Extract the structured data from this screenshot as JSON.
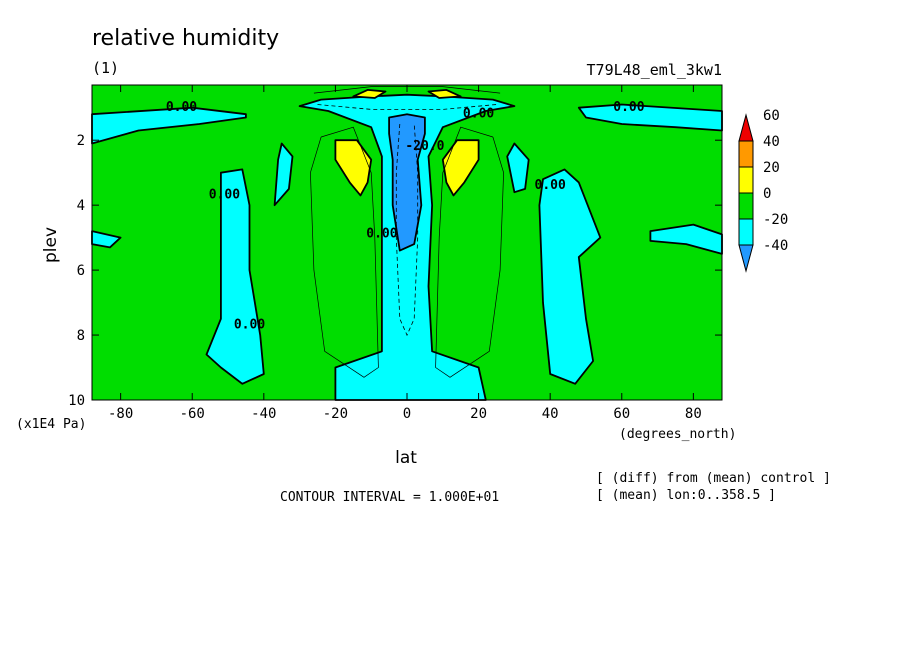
{
  "chart_data": {
    "type": "heatmap",
    "title": "relative humidity",
    "subtitle_left": "(1)",
    "subtitle_right": "T79L48_eml_3kw1",
    "xlabel": "lat",
    "ylabel": "plev",
    "x_units": "(degrees_north)",
    "y_units": "(x1E4 Pa)",
    "xlim": [
      -88,
      88
    ],
    "ylim": [
      0.3,
      10
    ],
    "y_inverted": true,
    "x_ticks": [
      -80,
      -60,
      -40,
      -20,
      0,
      20,
      40,
      60,
      80
    ],
    "y_ticks": [
      2,
      4,
      6,
      8,
      10
    ],
    "contour_interval_text": "CONTOUR INTERVAL = 1.000E+01",
    "notes": [
      "[ (diff) from (mean) control ]",
      "[ (mean) lon:0..358.5 ]"
    ],
    "colorbar": {
      "levels": [
        60,
        40,
        20,
        0,
        -20,
        -40
      ],
      "colors": [
        "#ee0000",
        "#ff9900",
        "#ffff00",
        "#00dd00",
        "#00ffff",
        "#2299ff"
      ]
    },
    "contour_labels": [
      {
        "text": "0.00",
        "lat": -63,
        "p": 1.1
      },
      {
        "text": "0.00",
        "lat": 62,
        "p": 1.1
      },
      {
        "text": "0.00",
        "lat": 20,
        "p": 1.3
      },
      {
        "text": "0.00",
        "lat": -51,
        "p": 3.8
      },
      {
        "text": "0.00",
        "lat": -44,
        "p": 7.8
      },
      {
        "text": "0.00",
        "lat": 40,
        "p": 3.5
      },
      {
        "text": "0.00",
        "lat": -7,
        "p": 5.0
      },
      {
        "text": "-20.0",
        "lat": 5,
        "p": 2.3
      }
    ],
    "regions": {
      "cyan": [
        [
          [
            -88,
            1.2
          ],
          [
            -60,
            1.0
          ],
          [
            -45,
            1.2
          ],
          [
            -45,
            1.3
          ],
          [
            -58,
            1.5
          ],
          [
            -75,
            1.7
          ],
          [
            -88,
            2.1
          ]
        ],
        [
          [
            88,
            1.1
          ],
          [
            60,
            0.9
          ],
          [
            48,
            1.0
          ],
          [
            50,
            1.3
          ],
          [
            60,
            1.5
          ],
          [
            75,
            1.6
          ],
          [
            88,
            1.7
          ]
        ],
        [
          [
            -52,
            3.0
          ],
          [
            -46,
            2.9
          ],
          [
            -44,
            4.0
          ],
          [
            -44,
            6.0
          ],
          [
            -41,
            8.0
          ],
          [
            -40,
            9.2
          ],
          [
            -46,
            9.5
          ],
          [
            -52,
            9.0
          ],
          [
            -56,
            8.6
          ],
          [
            -52,
            7.5
          ],
          [
            -52,
            5.0
          ]
        ],
        [
          [
            -35,
            2.1
          ],
          [
            -32,
            2.5
          ],
          [
            -33,
            3.5
          ],
          [
            -37,
            4.0
          ],
          [
            -36,
            2.6
          ]
        ],
        [
          [
            -88,
            4.8
          ],
          [
            -80,
            5.0
          ],
          [
            -83,
            5.3
          ],
          [
            -88,
            5.2
          ]
        ],
        [
          [
            -24,
            0.75
          ],
          [
            -10,
            0.65
          ],
          [
            0,
            0.6
          ],
          [
            10,
            0.65
          ],
          [
            24,
            0.75
          ],
          [
            30,
            0.95
          ],
          [
            22,
            1.1
          ],
          [
            10,
            1.6
          ],
          [
            6,
            2.5
          ],
          [
            7,
            4.0
          ],
          [
            6,
            6.5
          ],
          [
            7,
            8.5
          ],
          [
            20,
            9.0
          ],
          [
            22,
            10.0
          ],
          [
            -20,
            10.0
          ],
          [
            -20,
            9.0
          ],
          [
            -7,
            8.5
          ],
          [
            -7,
            6.5
          ],
          [
            -7,
            4.0
          ],
          [
            -7,
            2.5
          ],
          [
            -10,
            1.6
          ],
          [
            -22,
            1.1
          ],
          [
            -30,
            0.95
          ]
        ],
        [
          [
            30,
            2.1
          ],
          [
            34,
            2.6
          ],
          [
            33,
            3.5
          ],
          [
            30,
            3.6
          ],
          [
            28,
            2.5
          ]
        ],
        [
          [
            38,
            3.2
          ],
          [
            44,
            2.9
          ],
          [
            48,
            3.3
          ],
          [
            54,
            5.0
          ],
          [
            48,
            5.6
          ],
          [
            50,
            7.5
          ],
          [
            52,
            8.8
          ],
          [
            47,
            9.5
          ],
          [
            40,
            9.2
          ],
          [
            38,
            7.0
          ],
          [
            37,
            4.0
          ]
        ],
        [
          [
            68,
            4.8
          ],
          [
            80,
            4.6
          ],
          [
            88,
            4.9
          ],
          [
            88,
            5.5
          ],
          [
            78,
            5.2
          ],
          [
            68,
            5.1
          ]
        ]
      ],
      "blue": [
        [
          [
            -5,
            1.3
          ],
          [
            0,
            1.2
          ],
          [
            5,
            1.3
          ],
          [
            5,
            1.8
          ],
          [
            3,
            2.6
          ],
          [
            4,
            4.0
          ],
          [
            2,
            5.2
          ],
          [
            -2,
            5.4
          ],
          [
            -4,
            4.0
          ],
          [
            -4,
            2.6
          ],
          [
            -5,
            1.8
          ]
        ]
      ],
      "yellow": [
        [
          [
            -20,
            2.0
          ],
          [
            -14,
            2.0
          ],
          [
            -10,
            2.6
          ],
          [
            -11,
            3.3
          ],
          [
            -13,
            3.7
          ],
          [
            -16,
            3.3
          ],
          [
            -20,
            2.6
          ]
        ],
        [
          [
            10,
            2.6
          ],
          [
            14,
            2.0
          ],
          [
            20,
            2.0
          ],
          [
            20,
            2.6
          ],
          [
            16,
            3.3
          ],
          [
            13,
            3.7
          ],
          [
            11,
            3.3
          ]
        ],
        [
          [
            -11,
            0.45
          ],
          [
            -6,
            0.5
          ],
          [
            -9,
            0.7
          ],
          [
            -15,
            0.65
          ]
        ],
        [
          [
            6,
            0.5
          ],
          [
            11,
            0.45
          ],
          [
            15,
            0.65
          ],
          [
            9,
            0.7
          ]
        ]
      ]
    }
  }
}
